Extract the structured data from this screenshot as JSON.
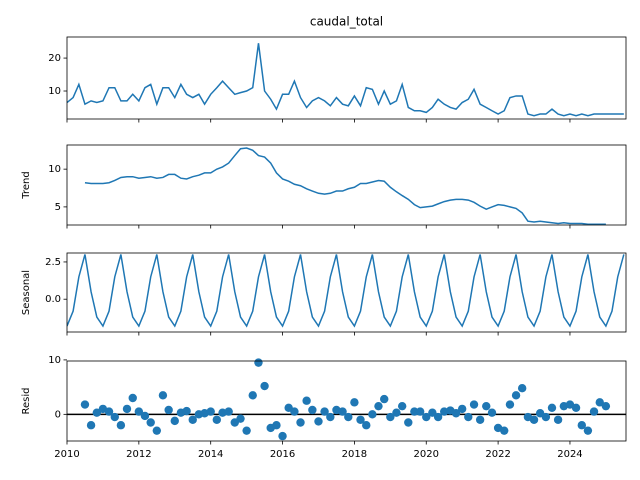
{
  "chart_data": {
    "type": "seasonal_decompose",
    "color": "#1f77b4",
    "x": [
      2010,
      2010.17,
      2010.33,
      2010.5,
      2010.67,
      2010.83,
      2011,
      2011.17,
      2011.33,
      2011.5,
      2011.67,
      2011.83,
      2012,
      2012.17,
      2012.33,
      2012.5,
      2012.67,
      2012.83,
      2013,
      2013.17,
      2013.33,
      2013.5,
      2013.67,
      2013.83,
      2014,
      2014.17,
      2014.33,
      2014.5,
      2014.67,
      2014.83,
      2015,
      2015.17,
      2015.33,
      2015.5,
      2015.67,
      2015.83,
      2016,
      2016.17,
      2016.33,
      2016.5,
      2016.67,
      2016.83,
      2017,
      2017.17,
      2017.33,
      2017.5,
      2017.67,
      2017.83,
      2018,
      2018.17,
      2018.33,
      2018.5,
      2018.67,
      2018.83,
      2019,
      2019.17,
      2019.33,
      2019.5,
      2019.67,
      2019.83,
      2020,
      2020.17,
      2020.33,
      2020.5,
      2020.67,
      2020.83,
      2021,
      2021.17,
      2021.33,
      2021.5,
      2021.67,
      2021.83,
      2022,
      2022.17,
      2022.33,
      2022.5,
      2022.67,
      2022.83,
      2023,
      2023.17,
      2023.33,
      2023.5,
      2023.67,
      2023.83,
      2024,
      2024.17,
      2024.33,
      2024.5,
      2024.67,
      2024.83,
      2025,
      2025.17,
      2025.33,
      2025.5
    ],
    "xlim": [
      2010,
      2025.56
    ],
    "xticks": [
      2010,
      2012,
      2014,
      2016,
      2018,
      2020,
      2022,
      2024
    ],
    "panels": [
      {
        "type": "line",
        "title": "caudal_total",
        "ylim": [
          1.5,
          26.4
        ],
        "yticks": [
          10,
          20
        ],
        "values": [
          6.5,
          8,
          12,
          6,
          7,
          6.5,
          7,
          11,
          11,
          7,
          7,
          9,
          7,
          11,
          12,
          6,
          11,
          11,
          8,
          12,
          9,
          8,
          9,
          6,
          9,
          11,
          13,
          11,
          9,
          9.5,
          10,
          11,
          24.5,
          10,
          7.5,
          4.5,
          9,
          9,
          13,
          8,
          5,
          7,
          8,
          7,
          5.5,
          8,
          6,
          5.5,
          8.5,
          5.5,
          11,
          10.5,
          6,
          10,
          6,
          7,
          12,
          5,
          4,
          4,
          3.5,
          5,
          7.5,
          6,
          5,
          4.5,
          6.5,
          7.5,
          10.5,
          6,
          5,
          4,
          3,
          4,
          8,
          8.5,
          8.5,
          3,
          2.5,
          3,
          3,
          4.5,
          3,
          2.5,
          3,
          2.5,
          3,
          2.5,
          3,
          3,
          3,
          3,
          3,
          3
        ]
      },
      {
        "type": "line",
        "ylabel": "Trend",
        "ylim": [
          2.6,
          13.2
        ],
        "yticks": [
          5,
          10
        ],
        "values": [
          null,
          null,
          null,
          8.2,
          8.1,
          8.1,
          8.1,
          8.2,
          8.5,
          8.9,
          9,
          9,
          8.8,
          8.9,
          9,
          8.8,
          8.9,
          9.3,
          9.3,
          8.8,
          8.7,
          9,
          9.2,
          9.5,
          9.5,
          10,
          10.3,
          10.8,
          11.8,
          12.7,
          12.8,
          12.5,
          11.8,
          11.6,
          10.8,
          9.5,
          8.7,
          8.4,
          8,
          7.8,
          7.4,
          7.1,
          6.8,
          6.7,
          6.8,
          7.1,
          7.1,
          7.4,
          7.6,
          8.1,
          8.1,
          8.3,
          8.5,
          8.4,
          7.6,
          7,
          6.5,
          6,
          5.3,
          4.9,
          5,
          5.1,
          5.4,
          5.7,
          5.9,
          6,
          6,
          5.9,
          5.6,
          5.1,
          4.7,
          5,
          5.3,
          5.2,
          5,
          4.8,
          4.2,
          3.1,
          3,
          3.1,
          3,
          2.9,
          2.8,
          2.9,
          2.8,
          2.8,
          2.8,
          2.7,
          2.7,
          2.7,
          2.7,
          null,
          null,
          null
        ]
      },
      {
        "type": "line",
        "ylabel": "Seasonal",
        "ylim": [
          -2.2,
          3.1
        ],
        "yticks": [
          {
            "value": 0,
            "label": "0.0"
          },
          {
            "value": 2.5,
            "label": "2.5"
          }
        ],
        "values": [
          -1.8,
          -0.8,
          1.5,
          3,
          0.5,
          -1.2,
          -1.8,
          -0.8,
          1.5,
          3,
          0.5,
          -1.2,
          -1.8,
          -0.8,
          1.5,
          3,
          0.5,
          -1.2,
          -1.8,
          -0.8,
          1.5,
          3,
          0.5,
          -1.2,
          -1.8,
          -0.8,
          1.5,
          3,
          0.5,
          -1.2,
          -1.8,
          -0.8,
          1.5,
          3,
          0.5,
          -1.2,
          -1.8,
          -0.8,
          1.5,
          3,
          0.5,
          -1.2,
          -1.8,
          -0.8,
          1.5,
          3,
          0.5,
          -1.2,
          -1.8,
          -0.8,
          1.5,
          3,
          0.5,
          -1.2,
          -1.8,
          -0.8,
          1.5,
          3,
          0.5,
          -1.2,
          -1.8,
          -0.8,
          1.5,
          3,
          0.5,
          -1.2,
          -1.8,
          -0.8,
          1.5,
          3,
          0.5,
          -1.2,
          -1.8,
          -0.8,
          1.5,
          3,
          0.5,
          -1.2,
          -1.8,
          -0.8,
          1.5,
          3,
          0.5,
          -1.2,
          -1.8,
          -0.8,
          1.5,
          3,
          0.5,
          -1.2,
          -1.8,
          -0.8,
          1.5,
          3
        ]
      },
      {
        "type": "scatter",
        "ylabel": "Resid",
        "ylim": [
          -4.9,
          9.8
        ],
        "yticks": [
          0,
          10
        ],
        "zero_line": true,
        "values": [
          null,
          null,
          null,
          1.8,
          -2,
          0.3,
          1,
          0.5,
          -0.5,
          -2,
          1,
          3,
          0.5,
          -0.3,
          -1.5,
          -3,
          3.5,
          0.8,
          -1.2,
          0.3,
          0.6,
          -1,
          0,
          0.2,
          0.5,
          -1,
          0.3,
          0.5,
          -1.5,
          -0.8,
          -3,
          3.5,
          9.5,
          5.2,
          -2.5,
          -2,
          -4,
          1.2,
          0.5,
          -1.5,
          2.5,
          0.8,
          -1.3,
          0.5,
          -0.5,
          0.8,
          0.5,
          -0.5,
          2.2,
          -1,
          -2,
          0,
          1.5,
          2.8,
          -0.5,
          0.3,
          1.5,
          -1.5,
          0.5,
          0.5,
          -0.5,
          0.3,
          -0.5,
          0.5,
          0.7,
          0.2,
          1,
          -0.5,
          1.8,
          -1,
          1.5,
          0.3,
          -2.5,
          -3,
          1.8,
          3.5,
          4.8,
          -0.5,
          -1,
          0.2,
          -0.5,
          1.2,
          -1,
          1.5,
          1.8,
          1.2,
          -2,
          -3,
          0.5,
          2.2,
          1.5,
          null,
          null,
          null
        ]
      }
    ]
  }
}
